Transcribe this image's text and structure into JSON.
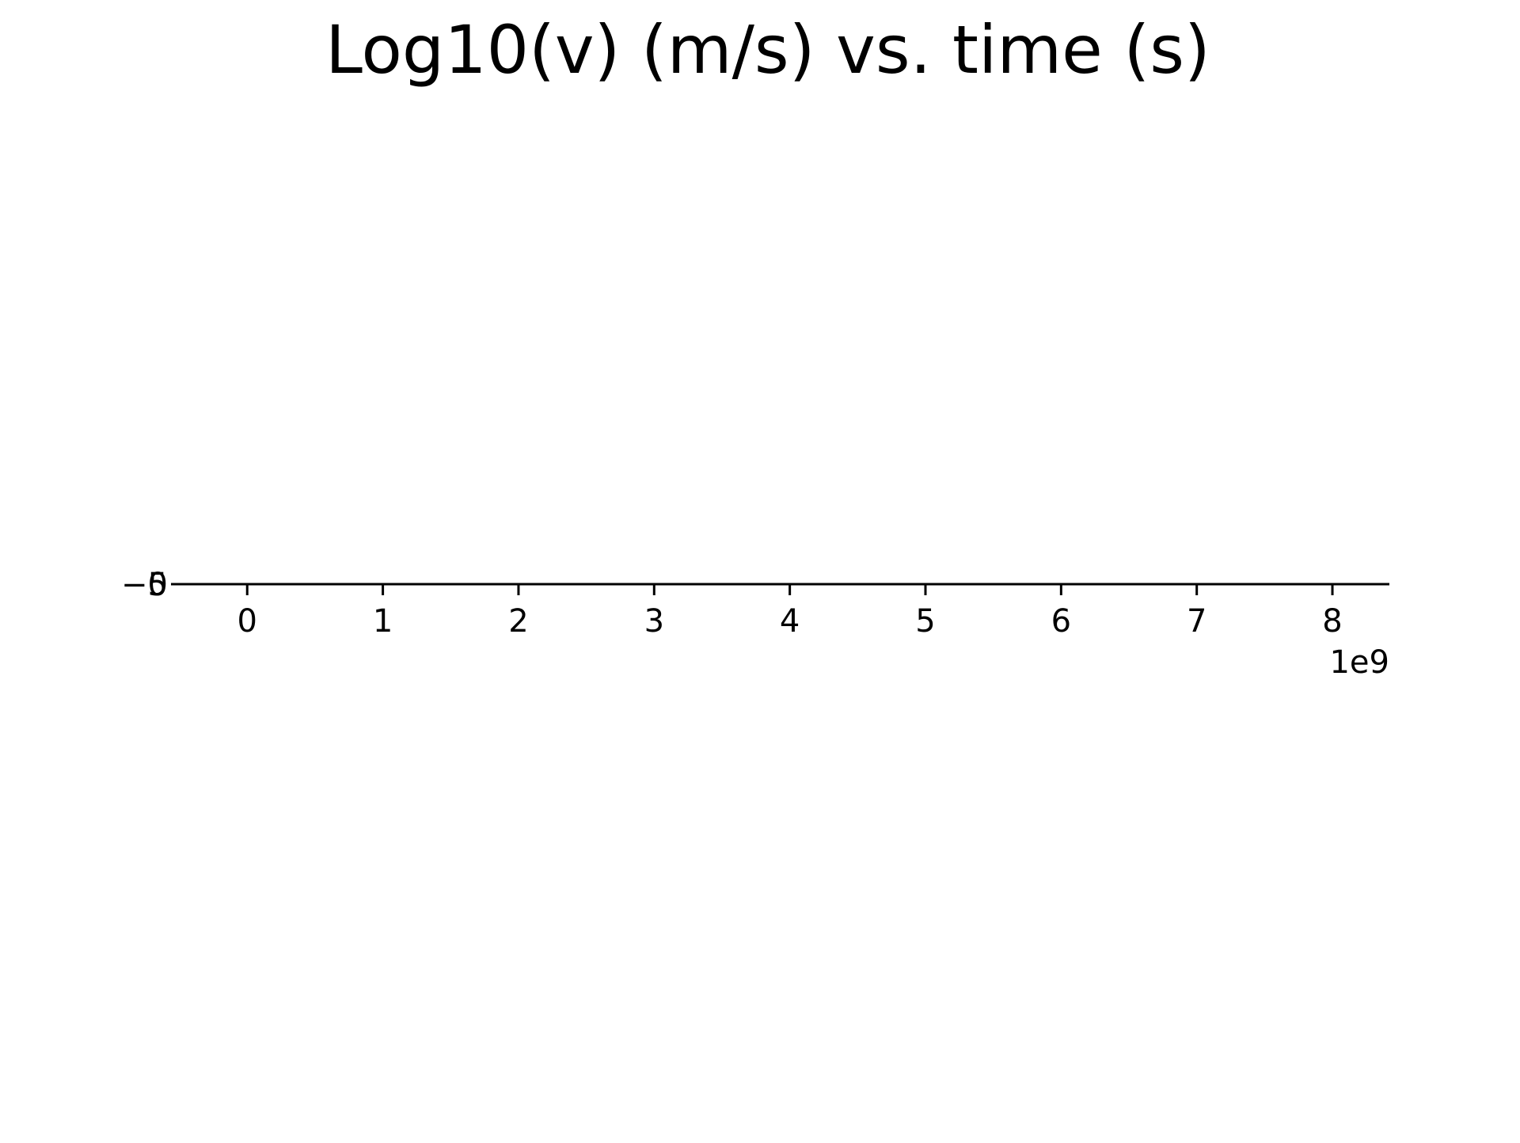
{
  "chart_data": {
    "type": "line",
    "title": "Log10(v) (m/s) vs. time (s)",
    "xlabel": "",
    "ylabel": "",
    "x_tick_values": [
      0,
      1,
      2,
      3,
      4,
      5,
      6,
      7,
      8
    ],
    "x_tick_labels": [
      "0",
      "1",
      "2",
      "3",
      "4",
      "5",
      "6",
      "7",
      "8"
    ],
    "x_offset_label": "1e9",
    "xlim": [
      -0.48,
      8.42
    ],
    "y_tick_values": [
      0,
      -5
    ],
    "y_tick_labels": [
      "0",
      "−5"
    ],
    "series": [],
    "grid": false,
    "legend": "none",
    "axis_color": "#000000",
    "text_color": "#000000",
    "background": "#ffffff"
  }
}
